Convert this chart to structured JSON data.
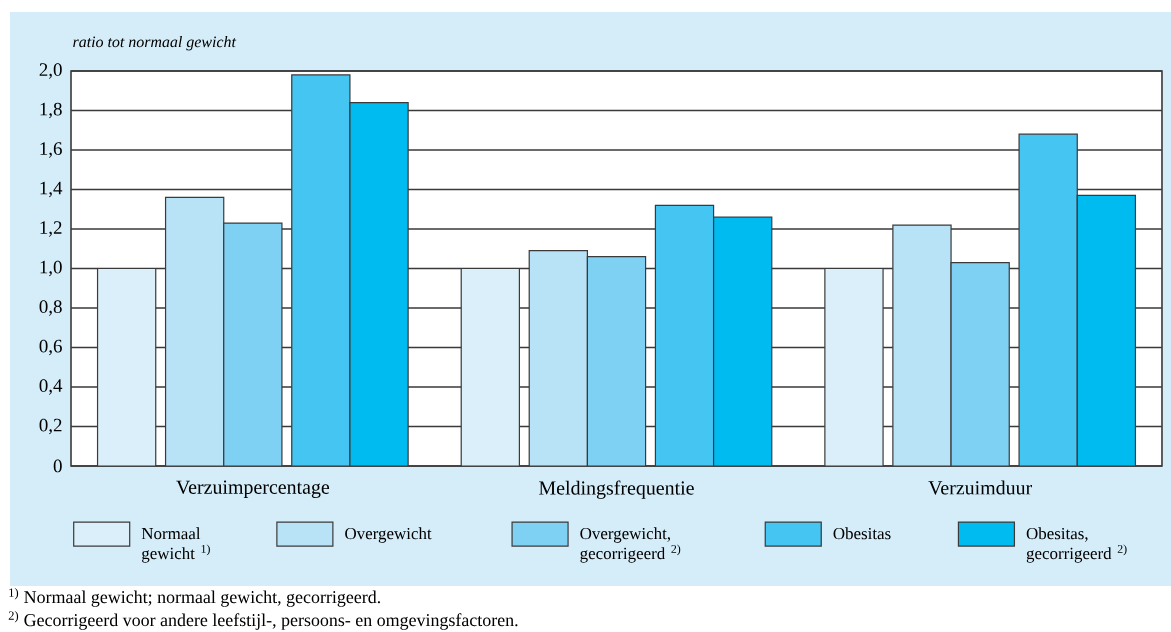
{
  "chart_data": {
    "type": "bar",
    "ylabel": "ratio tot normaal gewicht",
    "categories": [
      "Verzuimpercentage",
      "Meldingsfrequentie",
      "Verzuimduur"
    ],
    "series": [
      {
        "name": "Normaal gewicht $^{1)}$",
        "color": "#daeffa",
        "values": [
          1.0,
          1.0,
          1.0
        ]
      },
      {
        "name": "Overgewicht",
        "color": "#b8e3f7",
        "values": [
          1.36,
          1.09,
          1.22
        ]
      },
      {
        "name": "Overgewicht, gecorrigeerd $^{2)}$",
        "color": "#7fd1f4",
        "values": [
          1.23,
          1.06,
          1.03
        ]
      },
      {
        "name": "Obesitas",
        "color": "#45c5f2",
        "values": [
          1.98,
          1.32,
          1.68
        ]
      },
      {
        "name": "Obesitas, gecorrigeerd $^{2)}$",
        "color": "#00bbf0",
        "values": [
          1.84,
          1.26,
          1.37
        ]
      }
    ],
    "ylim": [
      0,
      2.0
    ],
    "yticks": [
      0,
      {
        "value": 0.2,
        "label": "0,2"
      },
      {
        "value": 0.4,
        "label": "0,4"
      },
      {
        "value": 0.6,
        "label": "0,6"
      },
      {
        "value": 0.8,
        "label": "0,8"
      },
      {
        "value": 1.0,
        "label": "1,0"
      },
      {
        "value": 1.2,
        "label": "1,2"
      },
      {
        "value": 1.4,
        "label": "1,4"
      },
      {
        "value": 1.6,
        "label": "1,6"
      },
      {
        "value": 1.8,
        "label": "1,8"
      },
      {
        "value": 2.0,
        "label": "2,0"
      }
    ],
    "grid": "y",
    "legend": "bottom",
    "annotations": [
      "$^{1)}$ Normaal gewicht; normaal gewicht, gecorrigeerd.",
      "$^{2)}$ Gecorrigeerd voor andere leefstijl-, persoons- en omgevingsfactoren."
    ]
  }
}
